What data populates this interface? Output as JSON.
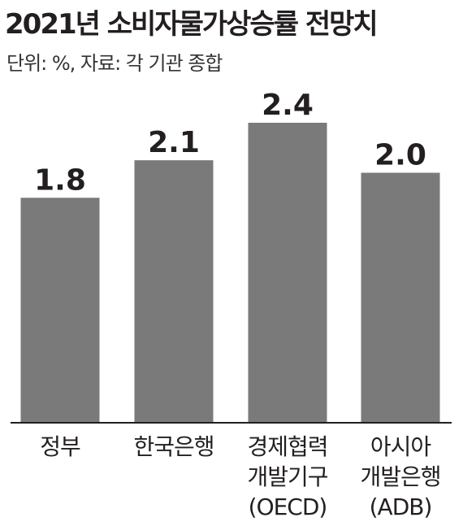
{
  "title": "2021년 소비자물가상승률 전망치",
  "subtitle": "단위: %, 자료: 각 기관 종합",
  "colors": {
    "bar": "#7a7a7a",
    "axis": "#231f20",
    "text": "#231f20"
  },
  "chart_data": {
    "type": "bar",
    "categories": [
      [
        "정부"
      ],
      [
        "한국은행"
      ],
      [
        "경제협력",
        "개발기구",
        "(OECD)"
      ],
      [
        "아시아",
        "개발은행",
        "(ADB)"
      ]
    ],
    "values": [
      1.8,
      2.1,
      2.4,
      2.0
    ],
    "value_labels": [
      "1.8",
      "2.1",
      "2.4",
      "2.0"
    ],
    "title": "2021년 소비자물가상승률 전망치",
    "unit": "%",
    "ylim": [
      0,
      2.4
    ],
    "grid": false,
    "legend": "none"
  }
}
